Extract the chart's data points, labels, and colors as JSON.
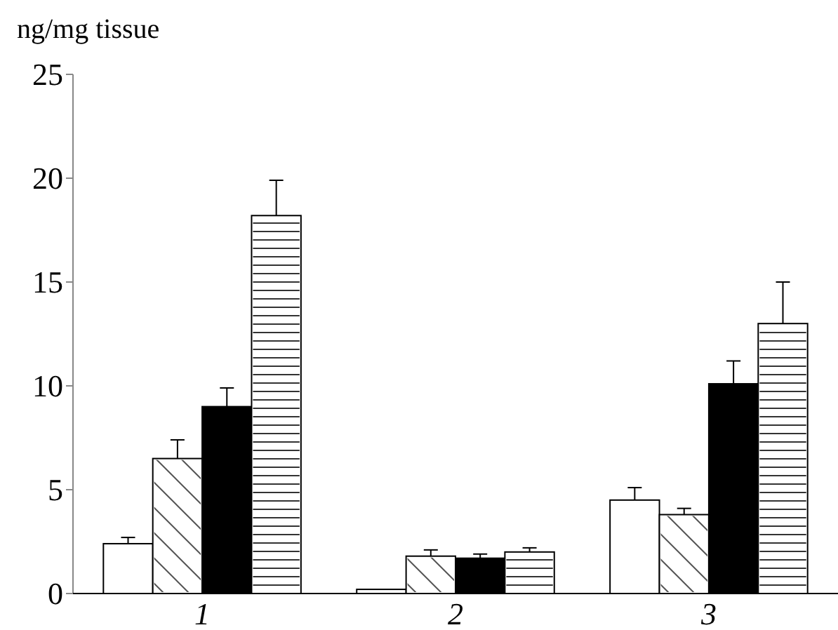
{
  "chart_data": {
    "type": "bar",
    "ylabel": "ng/mg tissue",
    "categories": [
      "1",
      "2",
      "3"
    ],
    "ylim": [
      0,
      25
    ],
    "yticks": [
      0,
      5,
      10,
      15,
      20,
      25
    ],
    "grid": false,
    "series": [
      {
        "color": "#ffffff",
        "values": [
          2.4,
          0.2,
          4.5
        ],
        "errors": [
          [
            2.4,
            2.7
          ],
          null,
          [
            4.5,
            5.1
          ]
        ]
      },
      {
        "color": "#ffffff",
        "values": [
          6.5,
          1.8,
          3.8
        ],
        "errors": [
          [
            6.5,
            7.4
          ],
          [
            1.8,
            2.1
          ],
          [
            3.8,
            4.1
          ]
        ]
      },
      {
        "color": "#000000",
        "values": [
          9.0,
          1.7,
          10.1
        ],
        "errors": [
          [
            9.0,
            9.9
          ],
          [
            1.7,
            1.9
          ],
          [
            10.1,
            11.2
          ]
        ]
      },
      {
        "color": "#ffffff",
        "values": [
          18.2,
          2.0,
          13.0
        ],
        "errors": [
          [
            18.2,
            19.9
          ],
          [
            2.0,
            2.2
          ],
          [
            13.0,
            15.0
          ]
        ]
      }
    ]
  }
}
